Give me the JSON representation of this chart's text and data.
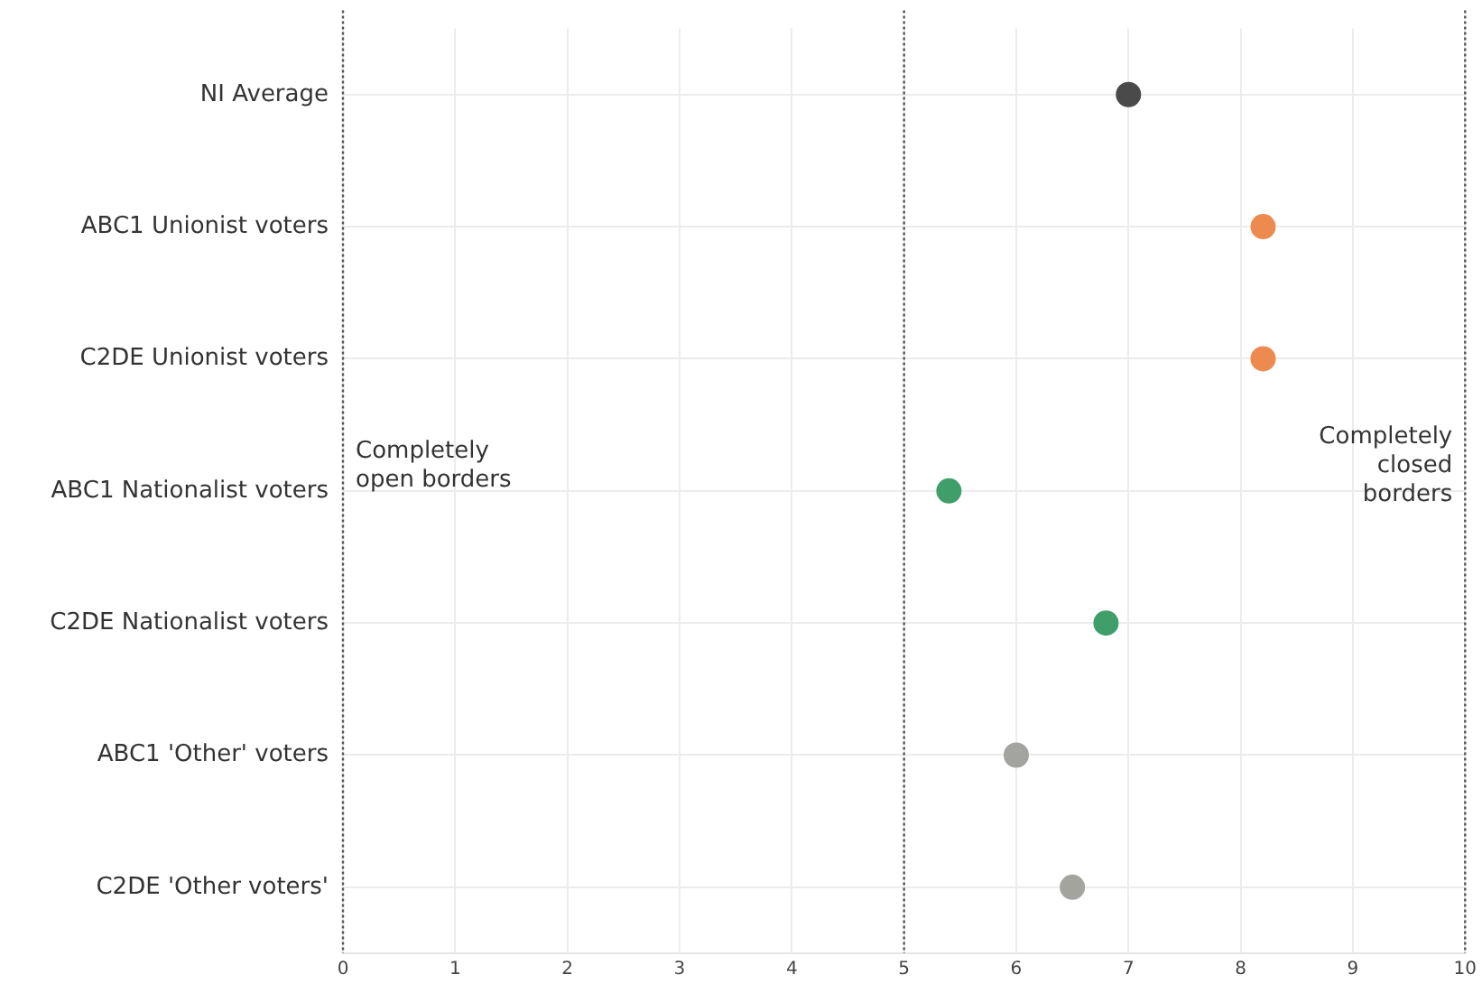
{
  "chart_data": {
    "type": "scatter",
    "orientation": "horizontal",
    "categories": [
      "NI Average",
      "ABC1 Unionist voters",
      "C2DE Unionist voters",
      "ABC1 Nationalist voters",
      "C2DE Nationalist voters",
      "ABC1 'Other' voters",
      "C2DE 'Other voters'"
    ],
    "values": [
      7.0,
      8.2,
      8.2,
      5.4,
      6.8,
      6.0,
      6.5
    ],
    "colors": [
      "#4a4a4a",
      "#ec8a4f",
      "#ec8a4f",
      "#3f9e6a",
      "#3f9e6a",
      "#a3a39f",
      "#a3a39f"
    ],
    "xlim": [
      0,
      10
    ],
    "xticks": [
      0,
      1,
      2,
      3,
      4,
      5,
      6,
      7,
      8,
      9,
      10
    ],
    "ref_lines": [
      {
        "axis": "x",
        "value": 0,
        "label": "Completely open borders",
        "color": "#555555",
        "line_style": "dotted"
      },
      {
        "axis": "x",
        "value": 5,
        "label": null,
        "color": "#555555",
        "line_style": "dotted"
      },
      {
        "axis": "x",
        "value": 10,
        "label": "Completely closed borders",
        "color": "#555555",
        "line_style": "dotted"
      }
    ],
    "grid": true,
    "legend": false,
    "marker": "circle"
  }
}
